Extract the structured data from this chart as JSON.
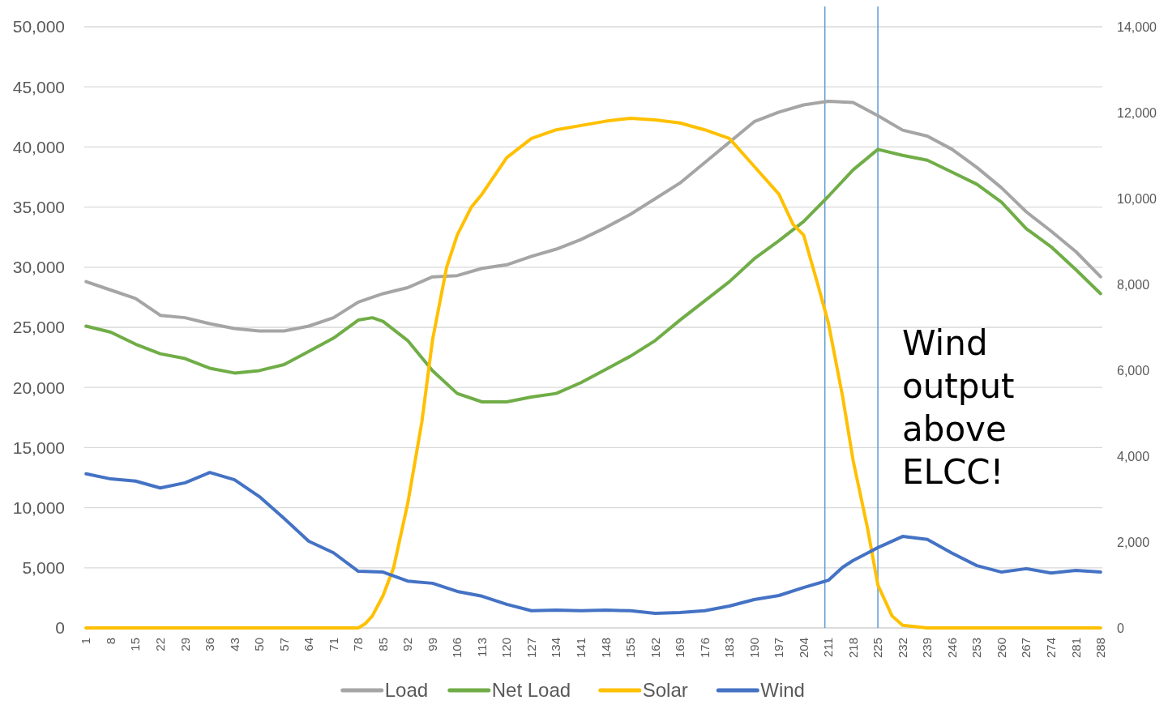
{
  "chart_data": {
    "type": "line",
    "xlim": [
      0.5,
      288.5
    ],
    "xticks": [
      1,
      8,
      15,
      22,
      29,
      36,
      43,
      50,
      57,
      64,
      71,
      78,
      85,
      92,
      99,
      106,
      113,
      120,
      127,
      134,
      141,
      148,
      155,
      162,
      169,
      176,
      183,
      190,
      197,
      204,
      211,
      218,
      225,
      232,
      239,
      246,
      253,
      260,
      267,
      274,
      281,
      288
    ],
    "ylim": [
      0,
      50000
    ],
    "yticks": [
      {
        "value": 0,
        "label": "0"
      },
      {
        "value": 5000,
        "label": "5,000"
      },
      {
        "value": 10000,
        "label": "10,000"
      },
      {
        "value": 15000,
        "label": "15,000"
      },
      {
        "value": 20000,
        "label": "20,000"
      },
      {
        "value": 25000,
        "label": "25,000"
      },
      {
        "value": 30000,
        "label": "30,000"
      },
      {
        "value": 35000,
        "label": "35,000"
      },
      {
        "value": 40000,
        "label": "40,000"
      },
      {
        "value": 45000,
        "label": "45,000"
      },
      {
        "value": 50000,
        "label": "50,000"
      }
    ],
    "y2lim": [
      0,
      14000
    ],
    "y2ticks": [
      {
        "value": 0,
        "label": "0"
      },
      {
        "value": 2000,
        "label": "2,000"
      },
      {
        "value": 4000,
        "label": "4,000"
      },
      {
        "value": 6000,
        "label": "6,000"
      },
      {
        "value": 8000,
        "label": "8,000"
      },
      {
        "value": 10000,
        "label": "10,000"
      },
      {
        "value": 12000,
        "label": "12,000"
      },
      {
        "value": 14000,
        "label": "14,000"
      }
    ],
    "grid": "y",
    "legend": "bottom",
    "marker": "none",
    "line_style": "solid",
    "series": [
      {
        "name": "Load",
        "color": "#a5a5a5",
        "x": [
          1,
          8,
          15,
          22,
          29,
          36,
          43,
          50,
          57,
          64,
          71,
          78,
          85,
          92,
          99,
          106,
          113,
          120,
          127,
          134,
          141,
          148,
          155,
          162,
          169,
          176,
          183,
          190,
          197,
          204,
          211,
          218,
          225,
          232,
          239,
          246,
          253,
          260,
          267,
          274,
          281,
          288
        ],
        "values": [
          28800,
          28100,
          27400,
          26000,
          25800,
          25300,
          24900,
          24700,
          24700,
          25100,
          25800,
          27100,
          27800,
          28300,
          29200,
          29300,
          29900,
          30200,
          30900,
          31500,
          32300,
          33300,
          34400,
          35700,
          37000,
          38700,
          40400,
          42100,
          42900,
          43500,
          43800,
          43700,
          42600,
          41400,
          40900,
          39800,
          38300,
          36600,
          34600,
          33000,
          31300,
          29200
        ]
      },
      {
        "name": "Net Load",
        "color": "#70ad47",
        "x": [
          1,
          8,
          15,
          22,
          29,
          36,
          43,
          50,
          57,
          64,
          71,
          78,
          82,
          85,
          92,
          99,
          106,
          113,
          120,
          127,
          134,
          141,
          148,
          155,
          162,
          169,
          176,
          183,
          190,
          197,
          204,
          211,
          218,
          225,
          232,
          239,
          246,
          253,
          260,
          267,
          274,
          281,
          288
        ],
        "values": [
          25100,
          24600,
          23600,
          22800,
          22400,
          21600,
          21200,
          21400,
          21900,
          23000,
          24100,
          25600,
          25800,
          25500,
          23900,
          21400,
          19500,
          18800,
          18800,
          19200,
          19500,
          20400,
          21500,
          22600,
          23900,
          25600,
          27200,
          28800,
          30700,
          32200,
          33800,
          35900,
          38100,
          39800,
          39300,
          38900,
          37900,
          36900,
          35400,
          33200,
          31700,
          29800,
          27800
        ]
      },
      {
        "name": "Solar",
        "color": "#ffc000",
        "axis": "y2",
        "x": [
          1,
          78,
          80,
          82,
          85,
          88,
          92,
          96,
          99,
          103,
          106,
          110,
          113,
          120,
          127,
          134,
          141,
          148,
          155,
          162,
          169,
          176,
          183,
          190,
          197,
          201,
          204,
          208,
          211,
          215,
          218,
          222,
          225,
          229,
          232,
          239,
          288
        ],
        "values": [
          0,
          0,
          100,
          280,
          750,
          1400,
          2900,
          4800,
          6700,
          8400,
          9150,
          9800,
          10100,
          10950,
          11400,
          11600,
          11700,
          11800,
          11870,
          11830,
          11760,
          11600,
          11400,
          10750,
          10100,
          9400,
          9150,
          8000,
          7100,
          5400,
          3900,
          2350,
          1000,
          280,
          60,
          0,
          0
        ]
      },
      {
        "name": "Wind",
        "color": "#4472c4",
        "axis": "y2",
        "x": [
          1,
          8,
          15,
          22,
          29,
          36,
          43,
          50,
          57,
          64,
          71,
          78,
          85,
          92,
          99,
          106,
          113,
          120,
          127,
          134,
          141,
          148,
          155,
          162,
          169,
          176,
          183,
          190,
          197,
          204,
          211,
          215,
          218,
          222,
          225,
          232,
          239,
          246,
          253,
          260,
          267,
          274,
          281,
          288
        ],
        "values": [
          3590,
          3470,
          3420,
          3260,
          3380,
          3620,
          3450,
          3060,
          2550,
          2020,
          1750,
          1320,
          1300,
          1090,
          1040,
          850,
          740,
          550,
          400,
          415,
          400,
          415,
          400,
          340,
          360,
          400,
          510,
          660,
          755,
          940,
          1110,
          1410,
          1570,
          1740,
          1870,
          2130,
          2060,
          1740,
          1450,
          1300,
          1380,
          1280,
          1340,
          1300
        ]
      }
    ],
    "ref_lines": [
      {
        "axis": "x",
        "value": 210,
        "color": "#5b9bd5"
      },
      {
        "axis": "x",
        "value": 225,
        "color": "#5b9bd5"
      }
    ],
    "annotations": [
      "Wind output above ELCC!"
    ]
  }
}
